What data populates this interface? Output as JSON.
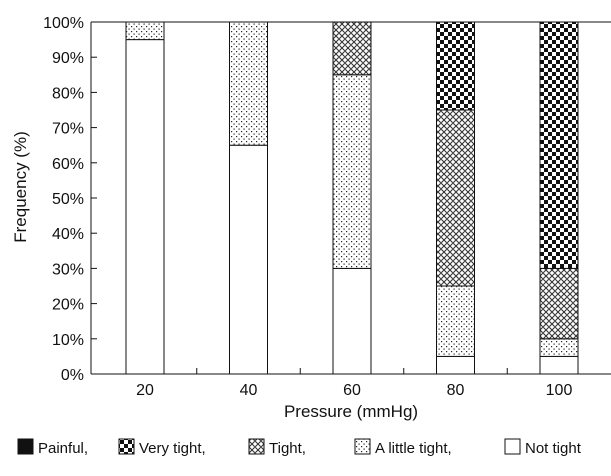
{
  "chart_data": {
    "type": "bar",
    "stacked": true,
    "xlabel": "Pressure (mmHg)",
    "ylabel": "Frequency (%)",
    "ylim": [
      0,
      100
    ],
    "yticks": [
      0,
      10,
      20,
      30,
      40,
      50,
      60,
      70,
      80,
      90,
      100
    ],
    "ytick_suffix": "%",
    "categories": [
      "20",
      "40",
      "60",
      "80",
      "100"
    ],
    "grid": false,
    "legend_position": "bottom",
    "series": [
      {
        "name": "Not tight",
        "pattern": "white",
        "values": [
          95,
          65,
          30,
          5,
          5
        ]
      },
      {
        "name": "A little tight,",
        "pattern": "dots",
        "values": [
          5,
          35,
          55,
          20,
          5
        ]
      },
      {
        "name": "Tight,",
        "pattern": "crosshatch",
        "values": [
          0,
          0,
          15,
          50,
          20
        ]
      },
      {
        "name": "Very tight,",
        "pattern": "checker",
        "values": [
          0,
          0,
          0,
          25,
          70
        ]
      },
      {
        "name": "Painful,",
        "pattern": "solid",
        "values": [
          0,
          0,
          0,
          0,
          0
        ]
      }
    ],
    "legend_order": [
      "Painful,",
      "Very tight,",
      "Tight,",
      "A little tight,",
      "Not tight"
    ]
  }
}
